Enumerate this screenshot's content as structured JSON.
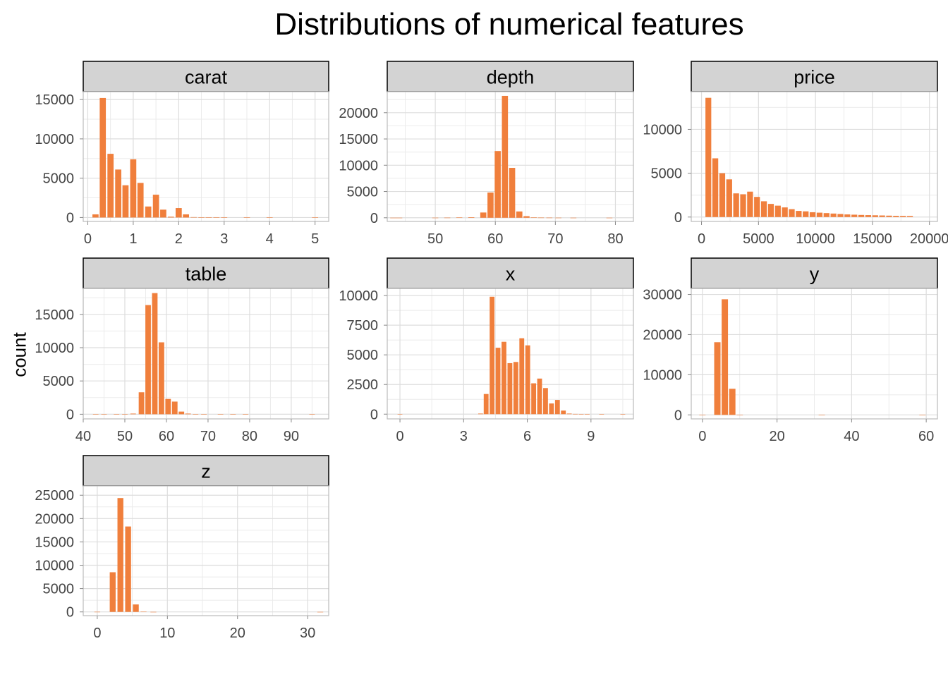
{
  "title": "Distributions of numerical features",
  "colors": {
    "bar": "#F07F3C",
    "strip_fill": "#D3D3D3",
    "grid": "#DDDDDD",
    "panel_border": "#BBBBBB",
    "strip_border": "#000000",
    "tick_text": "#444444"
  },
  "chart_data": {
    "type": "bar",
    "ylabel": "count",
    "xlabel": "",
    "panels": [
      {
        "name": "carat",
        "xlim": [
          -0.1,
          5.3
        ],
        "ylim": [
          -500,
          16000
        ],
        "xticks": [
          0,
          1,
          2,
          3,
          4,
          5
        ],
        "xtick_labels": [
          "0",
          "1",
          "2",
          "3",
          "4",
          "5"
        ],
        "yticks": [
          0,
          5000,
          10000,
          15000
        ],
        "ytick_labels": [
          "0",
          "5000",
          "10000",
          "15000"
        ],
        "binwidth": 0.16,
        "bins": [
          [
            0.17,
            400
          ],
          [
            0.33,
            15200
          ],
          [
            0.5,
            8100
          ],
          [
            0.67,
            6100
          ],
          [
            0.83,
            4100
          ],
          [
            1.0,
            7400
          ],
          [
            1.16,
            4400
          ],
          [
            1.33,
            1400
          ],
          [
            1.5,
            2900
          ],
          [
            1.66,
            1000
          ],
          [
            1.83,
            100
          ],
          [
            2.0,
            1200
          ],
          [
            2.16,
            400
          ],
          [
            2.33,
            50
          ],
          [
            2.5,
            20
          ],
          [
            2.66,
            10
          ],
          [
            2.83,
            5
          ],
          [
            3.0,
            5
          ],
          [
            3.5,
            2
          ],
          [
            4.0,
            2
          ],
          [
            5.0,
            1
          ]
        ]
      },
      {
        "name": "depth",
        "xlim": [
          42,
          83
        ],
        "ylim": [
          -700,
          24000
        ],
        "xticks": [
          50,
          60,
          70,
          80
        ],
        "xtick_labels": [
          "50",
          "60",
          "70",
          "80"
        ],
        "yticks": [
          0,
          5000,
          10000,
          15000,
          20000
        ],
        "ytick_labels": [
          "0",
          "5000",
          "10000",
          "15000",
          "20000"
        ],
        "binwidth": 1.2,
        "bins": [
          [
            43.0,
            5
          ],
          [
            44.0,
            5
          ],
          [
            50.0,
            10
          ],
          [
            52.0,
            20
          ],
          [
            54.0,
            50
          ],
          [
            56.0,
            100
          ],
          [
            58.0,
            1000
          ],
          [
            59.2,
            4800
          ],
          [
            60.4,
            12700
          ],
          [
            61.6,
            23200
          ],
          [
            62.8,
            9500
          ],
          [
            64.0,
            1200
          ],
          [
            65.2,
            300
          ],
          [
            66.4,
            80
          ],
          [
            67.6,
            30
          ],
          [
            69.0,
            20
          ],
          [
            70.5,
            10
          ],
          [
            73.0,
            5
          ],
          [
            79.0,
            3
          ]
        ]
      },
      {
        "name": "price",
        "xlim": [
          -900,
          20700
        ],
        "ylim": [
          -500,
          14300
        ],
        "xticks": [
          0,
          5000,
          10000,
          15000,
          20000
        ],
        "xtick_labels": [
          "0",
          "5000",
          "10000",
          "15000",
          "20000"
        ],
        "yticks": [
          0,
          5000,
          10000
        ],
        "ytick_labels": [
          "0",
          "5000",
          "10000"
        ],
        "binwidth": 610,
        "bins": [
          [
            600,
            13600
          ],
          [
            1210,
            6700
          ],
          [
            1820,
            5000
          ],
          [
            2430,
            4300
          ],
          [
            3040,
            2700
          ],
          [
            3650,
            2600
          ],
          [
            4260,
            2900
          ],
          [
            4870,
            2300
          ],
          [
            5480,
            1800
          ],
          [
            6090,
            1500
          ],
          [
            6700,
            1300
          ],
          [
            7310,
            1100
          ],
          [
            7920,
            900
          ],
          [
            8530,
            700
          ],
          [
            9140,
            650
          ],
          [
            9750,
            550
          ],
          [
            10360,
            500
          ],
          [
            10970,
            450
          ],
          [
            11580,
            400
          ],
          [
            12190,
            350
          ],
          [
            12800,
            300
          ],
          [
            13410,
            270
          ],
          [
            14020,
            240
          ],
          [
            14630,
            220
          ],
          [
            15240,
            200
          ],
          [
            15850,
            180
          ],
          [
            16460,
            160
          ],
          [
            17070,
            140
          ],
          [
            17680,
            130
          ],
          [
            18290,
            120
          ]
        ]
      },
      {
        "name": "table",
        "xlim": [
          40,
          99
        ],
        "ylim": [
          -700,
          18900
        ],
        "xticks": [
          40,
          50,
          60,
          70,
          80,
          90
        ],
        "xtick_labels": [
          "40",
          "50",
          "60",
          "70",
          "80",
          "90"
        ],
        "yticks": [
          0,
          5000,
          10000,
          15000
        ],
        "ytick_labels": [
          "0",
          "5000",
          "10000",
          "15000"
        ],
        "binwidth": 1.6,
        "bins": [
          [
            43.0,
            5
          ],
          [
            45.0,
            5
          ],
          [
            48.0,
            10
          ],
          [
            50.0,
            30
          ],
          [
            52.0,
            100
          ],
          [
            54.0,
            3300
          ],
          [
            55.6,
            16400
          ],
          [
            57.2,
            18200
          ],
          [
            58.8,
            10800
          ],
          [
            60.4,
            2300
          ],
          [
            62.0,
            1900
          ],
          [
            63.6,
            400
          ],
          [
            65.2,
            100
          ],
          [
            67.0,
            30
          ],
          [
            69.0,
            10
          ],
          [
            73.0,
            5
          ],
          [
            76.0,
            3
          ],
          [
            79.0,
            2
          ],
          [
            95.0,
            1
          ]
        ]
      },
      {
        "name": "x",
        "xlim": [
          -0.6,
          11.0
        ],
        "ylim": [
          -400,
          10600
        ],
        "xticks": [
          0,
          3,
          6,
          9
        ],
        "xtick_labels": [
          "0",
          "3",
          "6",
          "9"
        ],
        "yticks": [
          0,
          2500,
          5000,
          7500,
          10000
        ],
        "ytick_labels": [
          "0",
          "2500",
          "5000",
          "7500",
          "10000"
        ],
        "binwidth": 0.28,
        "bins": [
          [
            0.0,
            8
          ],
          [
            3.8,
            50
          ],
          [
            4.06,
            1700
          ],
          [
            4.34,
            9900
          ],
          [
            4.62,
            5600
          ],
          [
            4.9,
            6100
          ],
          [
            5.18,
            4300
          ],
          [
            5.46,
            4400
          ],
          [
            5.74,
            6400
          ],
          [
            6.02,
            5800
          ],
          [
            6.3,
            2600
          ],
          [
            6.58,
            3000
          ],
          [
            6.86,
            2200
          ],
          [
            7.14,
            900
          ],
          [
            7.42,
            1200
          ],
          [
            7.7,
            300
          ],
          [
            7.98,
            50
          ],
          [
            8.26,
            20
          ],
          [
            8.54,
            10
          ],
          [
            8.82,
            5
          ],
          [
            9.5,
            3
          ],
          [
            10.5,
            2
          ]
        ]
      },
      {
        "name": "y",
        "xlim": [
          -3,
          63
        ],
        "ylim": [
          -1000,
          31500
        ],
        "xticks": [
          0,
          20,
          40,
          60
        ],
        "xtick_labels": [
          "0",
          "20",
          "40",
          "60"
        ],
        "yticks": [
          0,
          10000,
          20000,
          30000
        ],
        "ytick_labels": [
          "0",
          "10000",
          "20000",
          "30000"
        ],
        "binwidth": 2.0,
        "bins": [
          [
            0.0,
            8
          ],
          [
            4.0,
            18100
          ],
          [
            6.0,
            28800
          ],
          [
            8.0,
            6500
          ],
          [
            10.0,
            20
          ],
          [
            32.0,
            1
          ],
          [
            59.0,
            1
          ]
        ]
      },
      {
        "name": "z",
        "xlim": [
          -2,
          33
        ],
        "ylim": [
          -800,
          27000
        ],
        "xticks": [
          0,
          10,
          20,
          30
        ],
        "xtick_labels": [
          "0",
          "10",
          "20",
          "30"
        ],
        "yticks": [
          0,
          5000,
          10000,
          15000,
          20000,
          25000
        ],
        "ytick_labels": [
          "0",
          "5000",
          "10000",
          "15000",
          "20000",
          "25000"
        ],
        "binwidth": 1.0,
        "bins": [
          [
            0.0,
            20
          ],
          [
            2.2,
            8500
          ],
          [
            3.3,
            24400
          ],
          [
            4.4,
            18300
          ],
          [
            5.5,
            1600
          ],
          [
            6.6,
            40
          ],
          [
            8.0,
            5
          ],
          [
            31.8,
            1
          ]
        ]
      }
    ]
  }
}
